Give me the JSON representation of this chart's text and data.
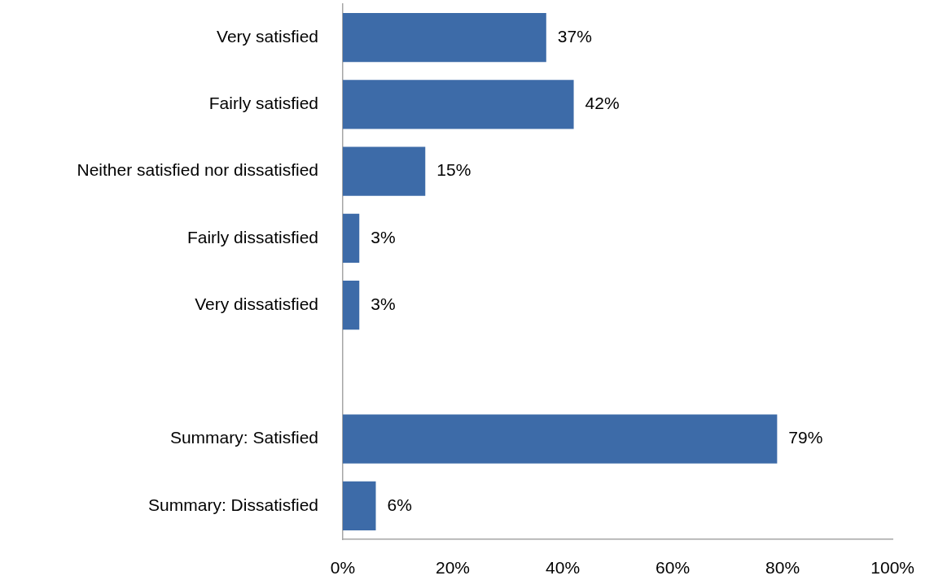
{
  "chart_data": {
    "type": "bar",
    "orientation": "horizontal",
    "categories": [
      "Very satisfied",
      "Fairly satisfied",
      "Neither satisfied nor dissatisfied",
      "Fairly dissatisfied",
      "Very dissatisfied",
      null,
      "Summary: Satisfied",
      "Summary: Dissatisfied"
    ],
    "values": [
      37,
      42,
      15,
      3,
      3,
      null,
      79,
      6
    ],
    "value_labels": [
      "37%",
      "42%",
      "15%",
      "3%",
      "3%",
      null,
      "79%",
      "6%"
    ],
    "color": "#3d6ba8",
    "xlim": [
      0,
      100
    ],
    "xticks": [
      {
        "value": 0,
        "label": "0%"
      },
      {
        "value": 20,
        "label": "20%"
      },
      {
        "value": 40,
        "label": "40%"
      },
      {
        "value": 60,
        "label": "60%"
      },
      {
        "value": 80,
        "label": "80%"
      },
      {
        "value": 100,
        "label": "100%"
      }
    ]
  }
}
